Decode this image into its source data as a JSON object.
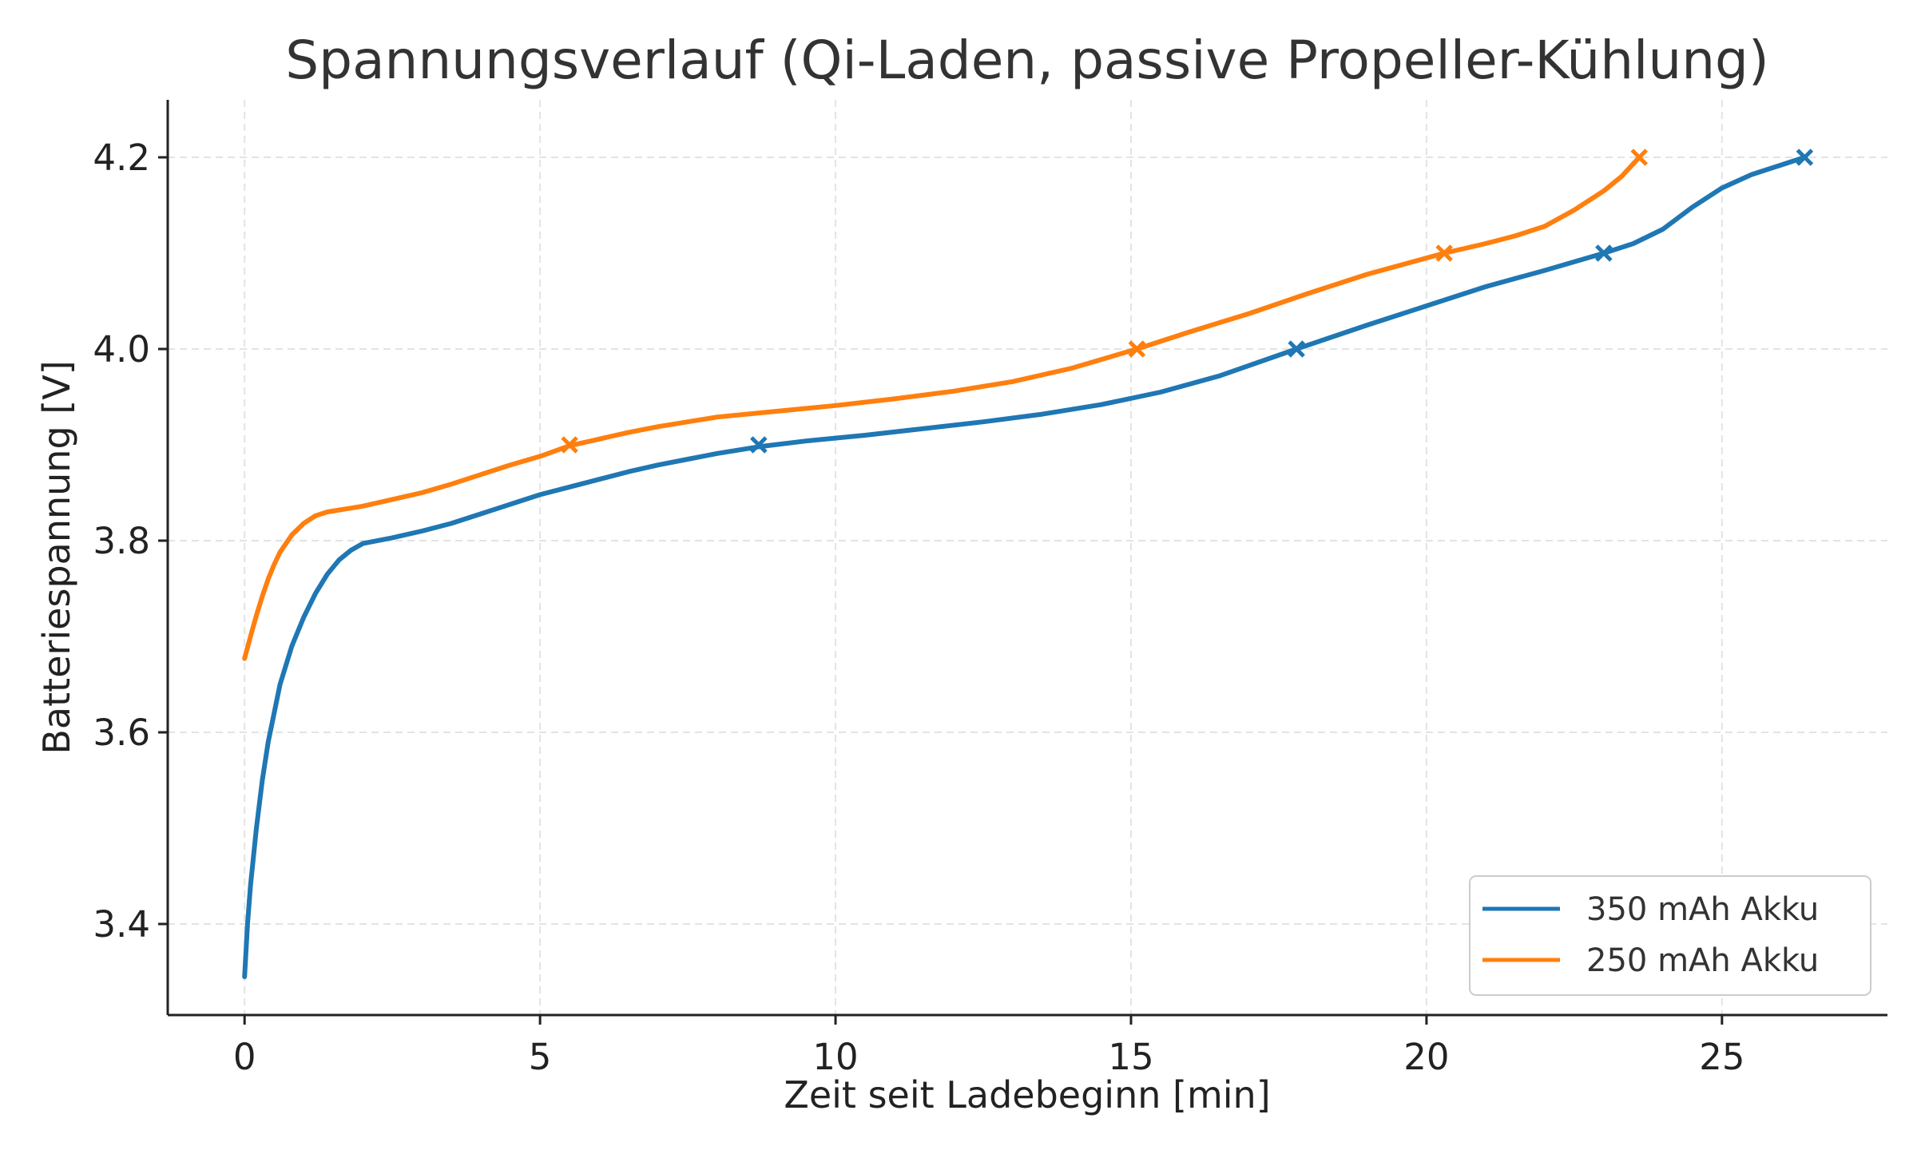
{
  "chart_data": {
    "type": "line",
    "title": "Spannungsverlauf (Qi-Laden, passive Propeller-Kühlung)",
    "xlabel": "Zeit seit Ladebeginn [min]",
    "ylabel": "Batteriespannung [V]",
    "xlim": [
      -1.3,
      27.8
    ],
    "ylim": [
      3.305,
      4.26
    ],
    "x_ticks": [
      0,
      5,
      10,
      15,
      20,
      25
    ],
    "y_ticks": [
      3.4,
      3.6,
      3.8,
      4.0,
      4.2
    ],
    "x_tick_labels": [
      "0",
      "5",
      "10",
      "15",
      "20",
      "25"
    ],
    "y_tick_labels": [
      "3.4",
      "3.6",
      "3.8",
      "4.0",
      "4.2"
    ],
    "grid": true,
    "legend_position": "lower-right",
    "series": [
      {
        "name": "350 mAh Akku",
        "color": "#1f77b4",
        "x": [
          0,
          0.05,
          0.1,
          0.2,
          0.3,
          0.4,
          0.5,
          0.6,
          0.8,
          1.0,
          1.2,
          1.4,
          1.6,
          1.8,
          2.0,
          2.5,
          3.0,
          3.5,
          4.0,
          4.5,
          5.0,
          5.5,
          6.0,
          6.5,
          7.0,
          7.5,
          8.0,
          8.7,
          9.5,
          10.5,
          11.5,
          12.5,
          13.5,
          14.5,
          15.5,
          16.5,
          17.8,
          19.0,
          20.0,
          21.0,
          22.0,
          23.0,
          23.5,
          24.0,
          24.5,
          25.0,
          25.5,
          26.0,
          26.4
        ],
        "y": [
          3.345,
          3.4,
          3.44,
          3.5,
          3.55,
          3.59,
          3.62,
          3.65,
          3.69,
          3.72,
          3.745,
          3.765,
          3.78,
          3.79,
          3.797,
          3.803,
          3.81,
          3.818,
          3.828,
          3.838,
          3.848,
          3.856,
          3.864,
          3.872,
          3.879,
          3.885,
          3.891,
          3.898,
          3.904,
          3.91,
          3.917,
          3.924,
          3.932,
          3.942,
          3.955,
          3.972,
          4.0,
          4.025,
          4.045,
          4.065,
          4.082,
          4.1,
          4.11,
          4.125,
          4.148,
          4.168,
          4.182,
          4.192,
          4.2
        ],
        "markers": [
          [
            8.7,
            3.9
          ],
          [
            17.8,
            4.0
          ],
          [
            23.0,
            4.1
          ],
          [
            26.4,
            4.2
          ]
        ]
      },
      {
        "name": "250 mAh Akku",
        "color": "#ff7f0e",
        "x": [
          0,
          0.1,
          0.2,
          0.3,
          0.4,
          0.5,
          0.6,
          0.8,
          1.0,
          1.2,
          1.4,
          1.7,
          2.0,
          2.5,
          3.0,
          3.5,
          4.0,
          4.5,
          5.0,
          5.5,
          6.0,
          6.5,
          7.0,
          7.5,
          8.0,
          9.0,
          10.0,
          11.0,
          12.0,
          13.0,
          14.0,
          15.1,
          16.0,
          17.0,
          18.0,
          19.0,
          20.3,
          21.0,
          21.5,
          22.0,
          22.5,
          23.0,
          23.3,
          23.6
        ],
        "y": [
          3.677,
          3.7,
          3.722,
          3.742,
          3.76,
          3.775,
          3.788,
          3.806,
          3.818,
          3.826,
          3.83,
          3.833,
          3.836,
          3.843,
          3.85,
          3.859,
          3.869,
          3.879,
          3.888,
          3.899,
          3.906,
          3.913,
          3.919,
          3.924,
          3.929,
          3.935,
          3.941,
          3.948,
          3.956,
          3.966,
          3.98,
          4.0,
          4.018,
          4.037,
          4.058,
          4.078,
          4.1,
          4.11,
          4.118,
          4.128,
          4.145,
          4.165,
          4.18,
          4.2
        ],
        "markers": [
          [
            5.5,
            3.9
          ],
          [
            15.1,
            4.0
          ],
          [
            20.3,
            4.1
          ],
          [
            23.6,
            4.2
          ]
        ]
      }
    ]
  }
}
